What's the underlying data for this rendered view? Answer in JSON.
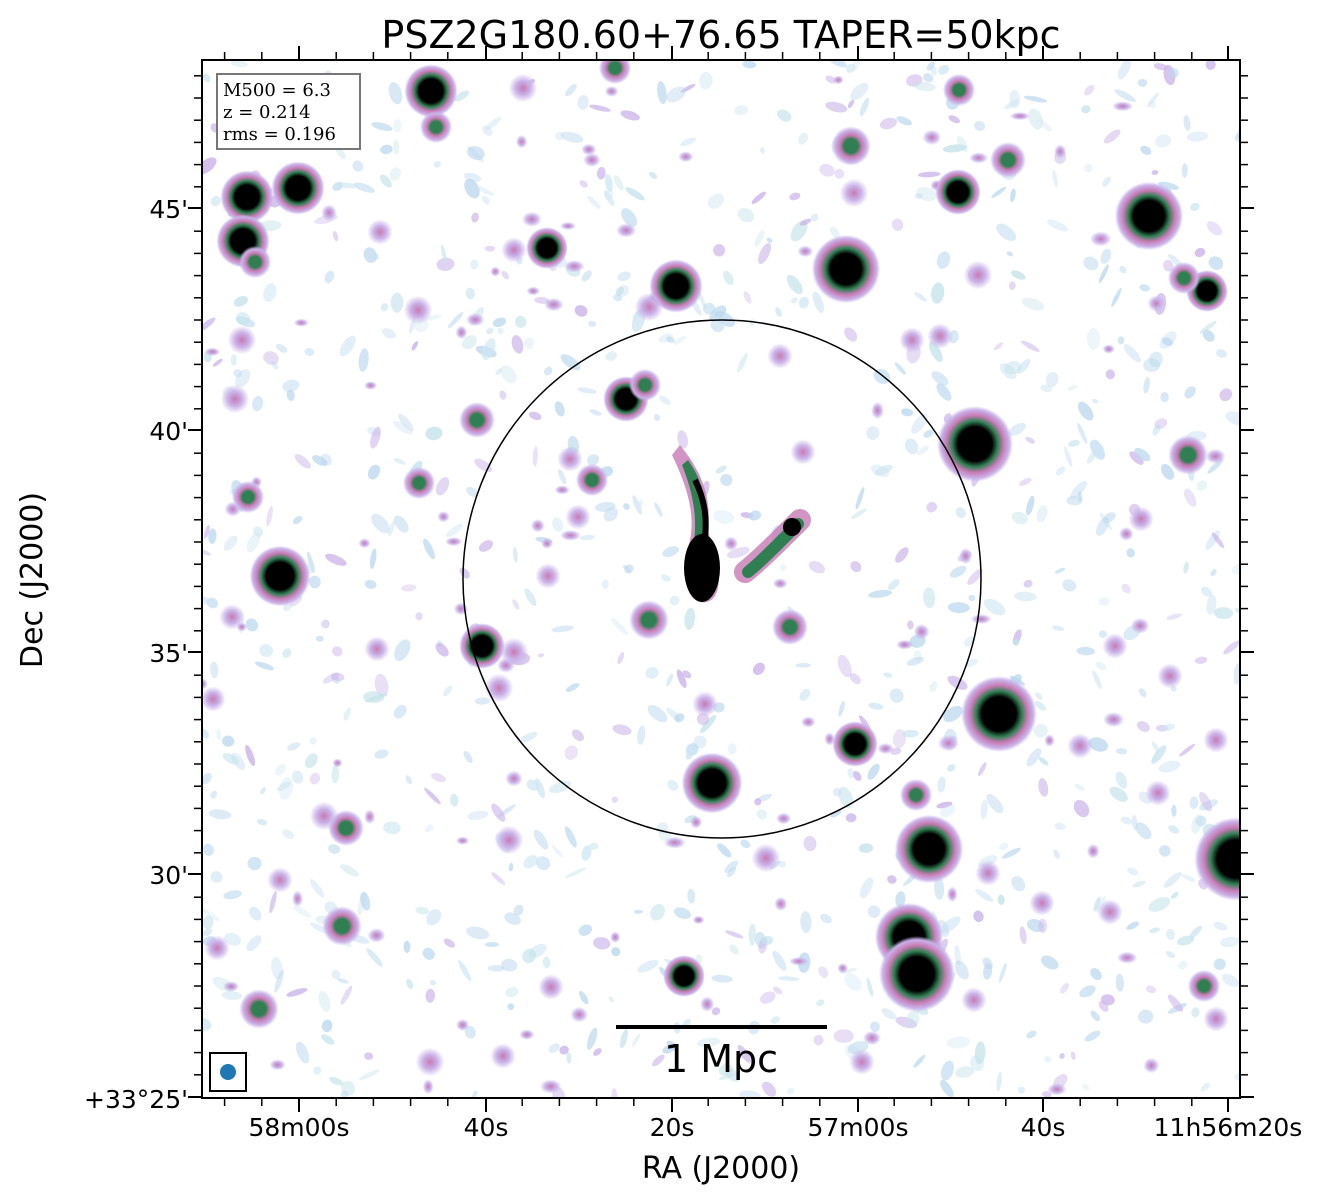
{
  "title": "PSZ2G180.60+76.65 TAPER=50kpc",
  "xlabel": "RA (J2000)",
  "ylabel": "Dec (J2000)",
  "x_ticks": [
    "58m00s",
    "40s",
    "20s",
    "57m00s",
    "40s",
    "11h56m20s"
  ],
  "y_ticks": [
    "45'",
    "40'",
    "35'",
    "30'",
    "+33°25'"
  ],
  "info": {
    "mass": "M500 = 6.3",
    "redshift": "z = 0.214",
    "rms": "rms = 0.196"
  },
  "scale_bar_label": "1 Mpc",
  "colors": {
    "frame": "#000000",
    "beam": "#1f77b4",
    "faint": "#bcd8ee",
    "low": "#c9b2e8",
    "mid": "#c77bb4",
    "high": "#2f7f52",
    "peak": "#000000"
  }
}
